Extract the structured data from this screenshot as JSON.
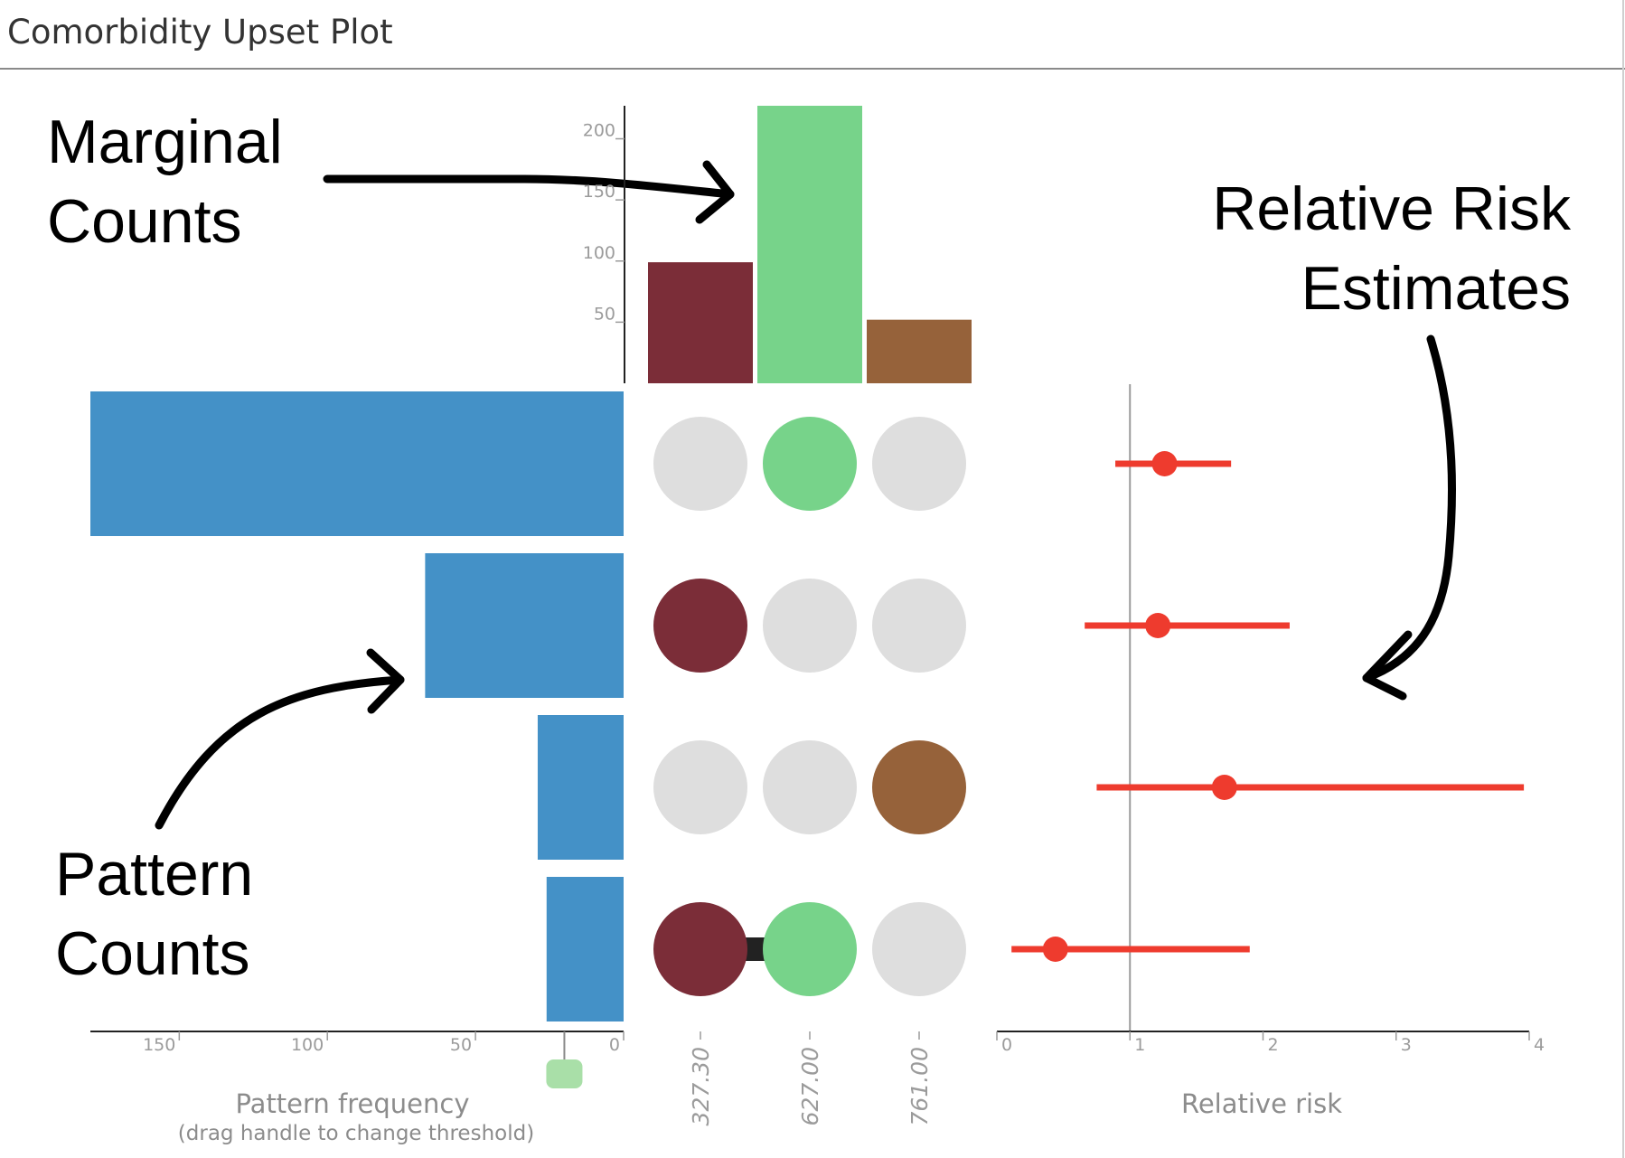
{
  "window": {
    "title": "Comorbidity Upset Plot"
  },
  "annotations": {
    "marginal": [
      "Marginal",
      "Counts"
    ],
    "relative_risk": [
      "Relative Risk",
      "Estimates"
    ],
    "pattern": [
      "Pattern",
      "Counts"
    ]
  },
  "colors": {
    "set_colors": [
      "#7b2d38",
      "#77d38a",
      "#96623a"
    ],
    "pattern_bar": "#4491c7",
    "inactive_dot": "#dedede",
    "risk": "#ee3b2e",
    "handle": "#a9dfa8",
    "connector": "#222222"
  },
  "chart_data": [
    {
      "type": "bar",
      "name": "marginal-counts",
      "categories": [
        "327.30",
        "627.00",
        "761.00"
      ],
      "values": [
        99,
        227,
        52
      ],
      "ylim": [
        0,
        227
      ],
      "yticks": [
        50,
        100,
        150,
        200
      ]
    },
    {
      "type": "bar",
      "name": "pattern-counts",
      "orientation": "horizontal",
      "patterns": [
        [
          0,
          1,
          0
        ],
        [
          1,
          0,
          0
        ],
        [
          0,
          0,
          1
        ],
        [
          1,
          1,
          0
        ]
      ],
      "values": [
        180,
        67,
        29,
        26
      ],
      "xlim": [
        0,
        180
      ],
      "xticks": [
        150,
        100,
        50,
        0
      ],
      "xlabel": "Pattern frequency",
      "xlabel_note": "(drag handle to change threshold)",
      "threshold": 20
    },
    {
      "type": "scatter",
      "name": "relative-risk",
      "estimates": [
        1.26,
        1.21,
        1.71,
        0.44
      ],
      "ci_low": [
        0.89,
        0.66,
        0.75,
        0.11
      ],
      "ci_high": [
        1.76,
        2.2,
        3.96,
        1.9
      ],
      "xlim": [
        0,
        4
      ],
      "xticks": [
        0,
        1,
        2,
        3,
        4
      ],
      "reference_line": 1,
      "xlabel": "Relative risk"
    }
  ]
}
